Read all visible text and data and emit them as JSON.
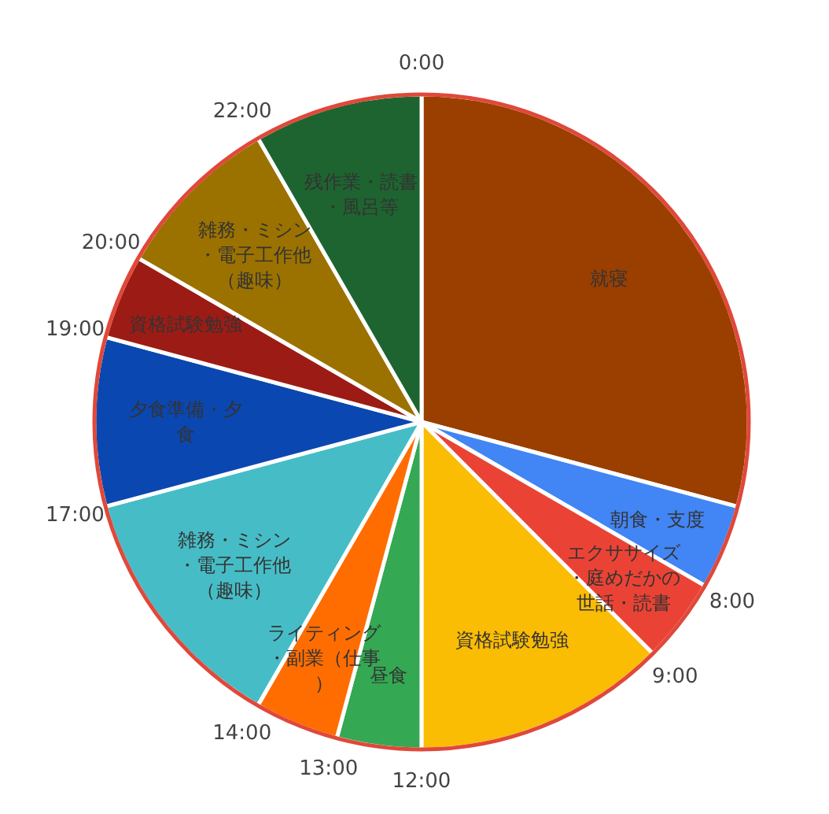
{
  "chart_data": {
    "type": "pie",
    "categories": [
      "就寝",
      "朝食・支度",
      "エクササイズ・庭めだかの世話・読書",
      "資格試験勉強",
      "昼食",
      "ライティング・副業（仕事）",
      "雑務・ミシン・電子工作他（趣味）",
      "夕食準備・夕食",
      "資格試験勉強",
      "雑務・ミシン・電子工作他（趣味）",
      "残作業・読書・風呂等"
    ],
    "values": [
      29.17,
      4.17,
      4.17,
      12.5,
      4.17,
      4.17,
      12.5,
      8.33,
      4.17,
      8.33,
      8.33
    ],
    "colors": [
      "#9a3f00",
      "#4285f4",
      "#ea4335",
      "#fbbc04",
      "#34a853",
      "#ff6d01",
      "#46bdc6",
      "#0b47b0",
      "#9c1c15",
      "#9b7200",
      "#1e6430"
    ],
    "annotations": [
      {
        "text": "0:00",
        "x": "就寝"
      },
      {
        "text": "8:00",
        "x": "エクササイズ・庭めだかの世話・読書"
      },
      {
        "text": "9:00",
        "x": "資格試験勉強"
      },
      {
        "text": "12:00",
        "x": "昼食"
      },
      {
        "text": "13:00",
        "x": "ライティング・副業（仕事）"
      },
      {
        "text": "14:00",
        "x": "雑務・ミシン・電子工作他（趣味）"
      },
      {
        "text": "17:00",
        "x": "夕食準備・夕食"
      },
      {
        "text": "19:00",
        "x": "資格試験勉強"
      },
      {
        "text": "20:00",
        "x": "雑務・ミシン・電子工作他（趣味）"
      },
      {
        "text": "22:00",
        "x": "残作業・読書・風呂等"
      }
    ]
  }
}
